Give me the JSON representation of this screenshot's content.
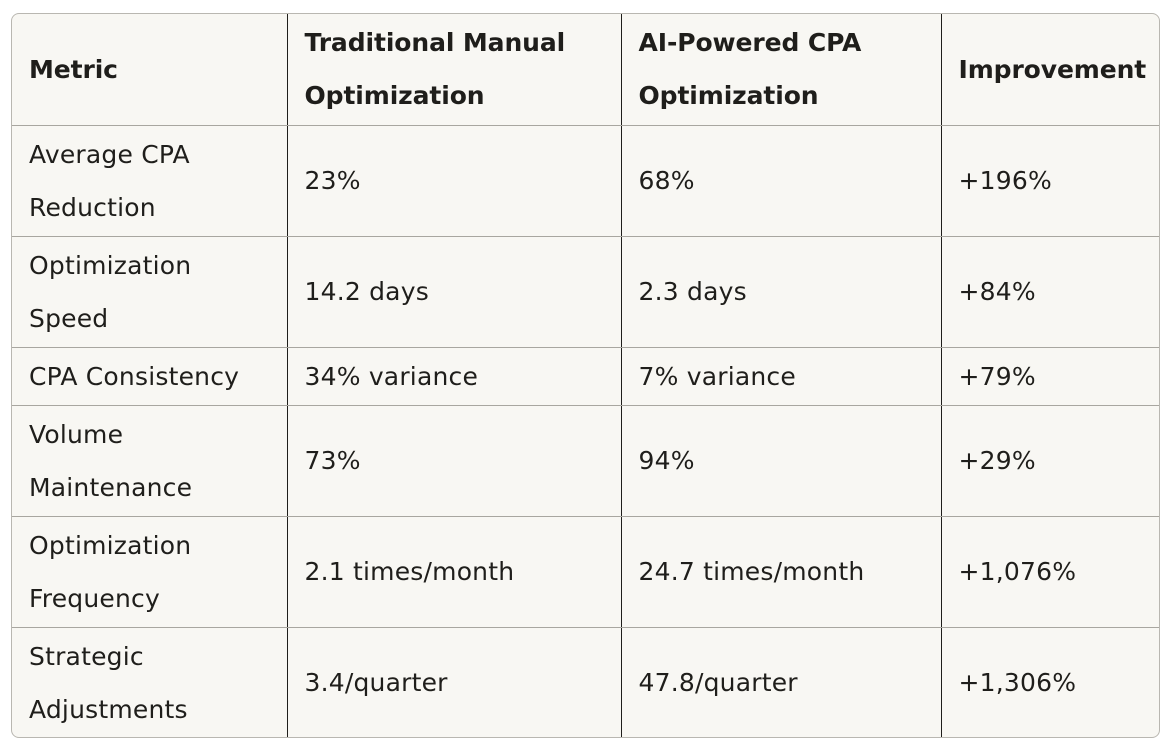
{
  "table": {
    "headers": [
      "Metric",
      "Traditional Manual Optimization",
      "AI-Powered CPA Optimization",
      "Improvement"
    ],
    "rows": [
      [
        "Average CPA Reduction",
        "23%",
        "68%",
        "+196%"
      ],
      [
        "Optimization Speed",
        "14.2 days",
        "2.3 days",
        "+84%"
      ],
      [
        "CPA Consistency",
        "34% variance",
        "7% variance",
        "+79%"
      ],
      [
        "Volume Maintenance",
        "73%",
        "94%",
        "+29%"
      ],
      [
        "Optimization Frequency",
        "2.1 times/month",
        "24.7 times/month",
        "+1,076%"
      ],
      [
        "Strategic Adjustments",
        "3.4/quarter",
        "47.8/quarter",
        "+1,306%"
      ]
    ]
  }
}
